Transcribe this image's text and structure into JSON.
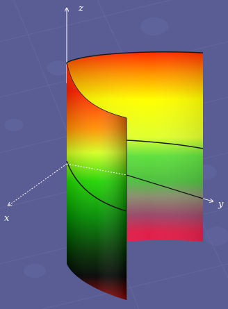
{
  "axes": {
    "z_label": "z",
    "x_label": "x",
    "y_label": "y"
  },
  "background": {
    "color": "#5a5d94",
    "pattern_color": "#6a6da6"
  },
  "surface": {
    "shape": "half-cylinder",
    "gradient_colors": [
      "#ff2000",
      "#ff8a00",
      "#ffff00",
      "#b9ff2a",
      "#00d700",
      "#008a00",
      "#000000",
      "#8a0000"
    ],
    "inner_band_colors": [
      "#7a9b5a",
      "#8a4a6a",
      "#e0204a"
    ]
  }
}
